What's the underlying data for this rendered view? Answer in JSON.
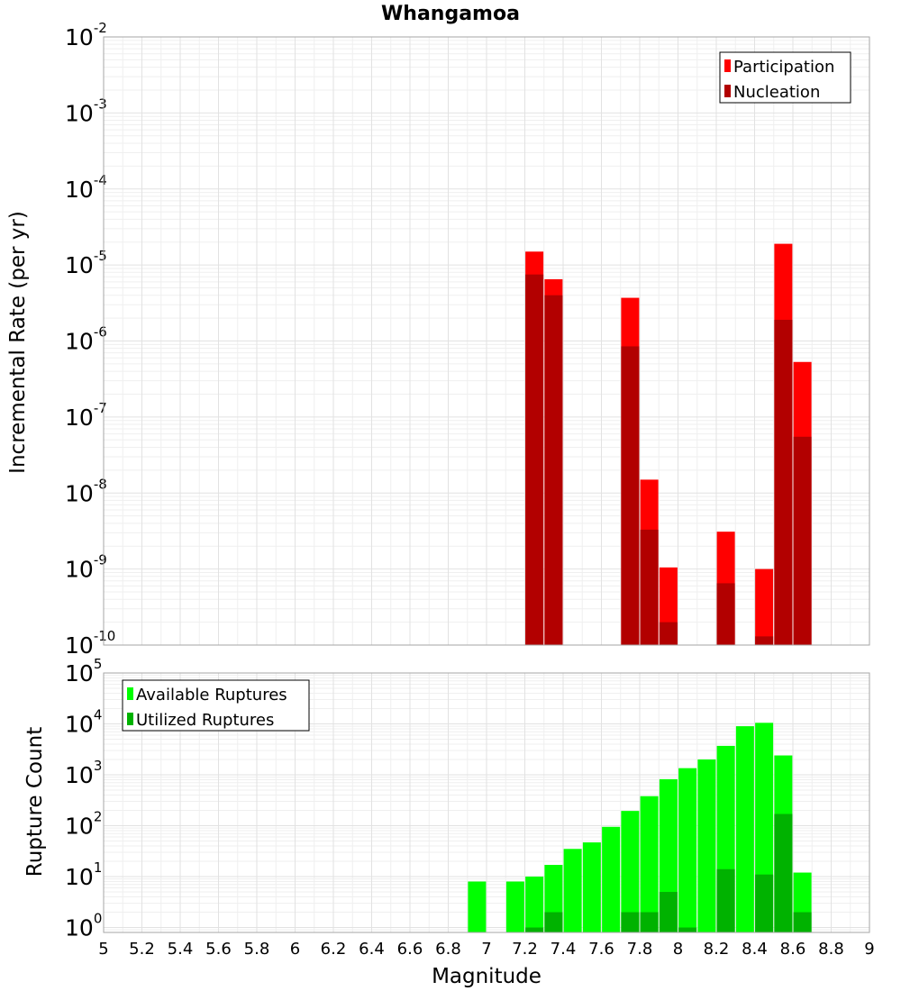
{
  "chart_data": [
    {
      "type": "bar",
      "title": "Whangamoa",
      "xlabel": "",
      "ylabel": "Incremental Rate (per yr)",
      "yscale": "log",
      "ylim": [
        1e-10,
        0.01
      ],
      "xlim": [
        5,
        9
      ],
      "x": [
        7.25,
        7.35,
        7.75,
        7.85,
        7.95,
        8.25,
        8.45,
        8.55,
        8.65
      ],
      "series": [
        {
          "name": "Participation",
          "color": "#ff0000",
          "values": [
            1.5e-05,
            6.5e-06,
            3.7e-06,
            1.5e-08,
            1.05e-09,
            3.1e-09,
            1e-09,
            1.9e-05,
            5.3e-07
          ]
        },
        {
          "name": "Nucleation",
          "color": "#b20000",
          "values": [
            7.5e-06,
            4e-06,
            8.5e-07,
            3.3e-09,
            2e-10,
            6.5e-10,
            1.3e-10,
            1.9e-06,
            5.5e-08
          ]
        }
      ],
      "legend_position": "top-right",
      "grid": true
    },
    {
      "type": "bar",
      "title": "",
      "xlabel": "Magnitude",
      "ylabel": "Rupture Count",
      "yscale": "log",
      "ylim": [
        0.8,
        100000.0
      ],
      "xlim": [
        5,
        9
      ],
      "xticks": [
        "5",
        "5.2",
        "5.4",
        "5.6",
        "5.8",
        "6",
        "6.2",
        "6.4",
        "6.6",
        "6.8",
        "7",
        "7.2",
        "7.4",
        "7.6",
        "7.8",
        "8",
        "8.2",
        "8.4",
        "8.6",
        "8.8",
        "9"
      ],
      "series": [
        {
          "name": "Available Ruptures",
          "color": "#00ff00",
          "x": [
            6.95,
            7.15,
            7.25,
            7.35,
            7.45,
            7.55,
            7.65,
            7.75,
            7.85,
            7.95,
            8.05,
            8.15,
            8.25,
            8.35,
            8.45,
            8.55,
            8.65
          ],
          "values": [
            8,
            8,
            10,
            17,
            35,
            47,
            95,
            195,
            380,
            820,
            1350,
            2000,
            3700,
            9000,
            10500,
            2400,
            12
          ]
        },
        {
          "name": "Utilized Ruptures",
          "color": "#00b200",
          "x": [
            7.25,
            7.35,
            7.75,
            7.85,
            7.95,
            8.05,
            8.25,
            8.45,
            8.55,
            8.65
          ],
          "values": [
            1,
            2,
            2,
            2,
            5,
            1,
            14,
            11,
            170,
            2
          ]
        }
      ],
      "legend_position": "top-left",
      "grid": true
    }
  ]
}
